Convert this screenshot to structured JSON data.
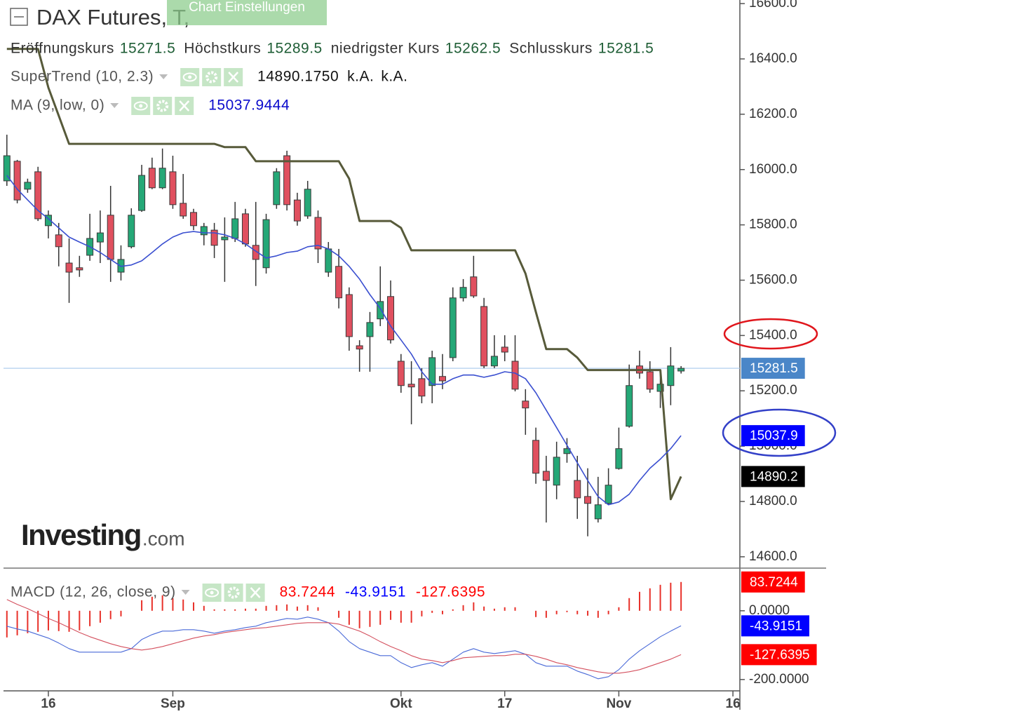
{
  "chart_data": [
    {
      "type": "candlestick",
      "title": "DAX Futures, T,",
      "categories": [
        null,
        null,
        null,
        null,
        "16",
        null,
        null,
        null,
        null,
        null,
        null,
        null,
        null,
        null,
        null,
        null,
        "Sep",
        null,
        null,
        null,
        null,
        null,
        null,
        null,
        null,
        null,
        null,
        null,
        null,
        null,
        null,
        null,
        null,
        null,
        null,
        null,
        null,
        null,
        "Okt",
        null,
        null,
        null,
        null,
        null,
        null,
        null,
        null,
        null,
        "17",
        null,
        null,
        null,
        null,
        null,
        null,
        null,
        null,
        null,
        null,
        "Nov",
        null,
        null,
        null,
        null,
        null,
        null,
        null,
        null,
        null,
        null,
        "16"
      ],
      "ohlc_labels": [
        "Eröffnungskurs",
        "Höchstkurs",
        "niedrigster Kurs",
        "Schlusskurs"
      ],
      "open": [
        15959,
        16030,
        15929,
        15992,
        15797,
        15764,
        15662,
        15645,
        15690,
        15738,
        15835,
        15629,
        15721,
        15852,
        16005,
        15934,
        15992,
        15878,
        15845,
        15764,
        15781,
        15746,
        15751,
        15840,
        15726,
        15645,
        15873,
        16050,
        15890,
        15832,
        15827,
        15629,
        15650,
        15548,
        15363,
        15396,
        15460,
        15541,
        15307,
        15224,
        15244,
        15219,
        15252,
        15320,
        15536,
        15612,
        15505,
        15290,
        15358,
        15307,
        15163,
        15021,
        14909,
        14859,
        14973,
        14876,
        14818,
        14737,
        14793,
        14919,
        15072,
        15290,
        15269,
        15198,
        15219,
        15271.5,
        null,
        null,
        null,
        null,
        null
      ],
      "high": [
        16126,
        16035,
        15967,
        16010,
        15852,
        15807,
        15751,
        15688,
        15840,
        15852,
        15941,
        15726,
        15860,
        16017,
        16043,
        16076,
        16050,
        15984,
        15858,
        15807,
        15807,
        15827,
        15883,
        15858,
        15883,
        15840,
        16005,
        16068,
        15916,
        15959,
        15852,
        15738,
        15713,
        15574,
        15383,
        15485,
        15650,
        15599,
        15333,
        15307,
        15282,
        15345,
        15333,
        15574,
        15604,
        15688,
        15536,
        15401,
        15401,
        15401,
        15206,
        15067,
        14965,
        15016,
        15029,
        14965,
        14920,
        14889,
        14920,
        15067,
        15295,
        15345,
        15307,
        15269,
        15358,
        15289.5,
        null,
        null,
        null,
        null,
        null
      ],
      "low": [
        15941,
        15878,
        15916,
        15814,
        15751,
        15650,
        15518,
        15612,
        15670,
        15662,
        15594,
        15599,
        15715,
        15847,
        15929,
        15929,
        15858,
        15822,
        15781,
        15726,
        15680,
        15594,
        15738,
        15721,
        15579,
        15624,
        15858,
        15852,
        15797,
        15822,
        15662,
        15612,
        15498,
        15345,
        15269,
        15269,
        15434,
        15371,
        15193,
        15079,
        15155,
        15155,
        15206,
        15307,
        15523,
        15536,
        15282,
        15282,
        15307,
        15198,
        15041,
        14864,
        14724,
        14808,
        14940,
        14737,
        14674,
        14724,
        14788,
        14915,
        15067,
        15244,
        15193,
        15138,
        15148,
        15262.5,
        null,
        null,
        null,
        null,
        null
      ],
      "close": [
        16050,
        15890,
        15954,
        15822,
        15835,
        15721,
        15629,
        15637,
        15751,
        15771,
        15675,
        15675,
        15835,
        15979,
        15934,
        16005,
        15873,
        15832,
        15797,
        15794,
        15726,
        15756,
        15822,
        15731,
        15675,
        15819,
        15992,
        15873,
        15814,
        15929,
        15713,
        15713,
        15536,
        15396,
        15351,
        15447,
        15523,
        15384,
        15219,
        15214,
        15181,
        15320,
        15236,
        15536,
        15574,
        15543,
        15290,
        15325,
        15340,
        15206,
        15138,
        14902,
        14876,
        14960,
        14991,
        14813,
        14793,
        14788,
        14859,
        14991,
        15219,
        15264,
        15206,
        15224,
        15290,
        15281.5,
        null,
        null,
        null,
        null,
        null
      ],
      "up_color": "#25a877",
      "down_color": "#e0505f",
      "last_price_color": "#4a86c8",
      "series": [
        {
          "name": "SuperTrend (10, 2.3)",
          "color": "#575a3a",
          "last_value_label": "14890.1750",
          "readout_notes": [
            "k.A.",
            "k.A."
          ],
          "axis_label": "14890.2",
          "label_color": "#000000",
          "values": [
            16436,
            16436,
            16436,
            16436,
            16296,
            16195,
            16093,
            16093,
            16093,
            16093,
            16093,
            16093,
            16093,
            16093,
            16093,
            16093,
            16093,
            16093,
            16093,
            16093,
            16093,
            16081,
            16081,
            16081,
            16030,
            16030,
            16030,
            16030,
            16030,
            16030,
            16030,
            16030,
            16030,
            15967,
            15814,
            15814,
            15814,
            15814,
            15789,
            15708,
            15708,
            15708,
            15708,
            15708,
            15708,
            15708,
            15708,
            15708,
            15708,
            15708,
            15624,
            15485,
            15351,
            15351,
            15351,
            15320,
            15275,
            15275,
            15275,
            15275,
            15275,
            15275,
            15275,
            15275,
            14808,
            14890.175,
            null,
            null,
            null,
            null,
            null
          ]
        },
        {
          "name": "MA (9, low, 0)",
          "color": "#3a4fd0",
          "axis_label": "15037.9",
          "label_color": "#0000ff",
          "values": [
            15979,
            15929,
            15890,
            15852,
            15822,
            15789,
            15756,
            15738,
            15721,
            15700,
            15675,
            15650,
            15655,
            15670,
            15700,
            15731,
            15756,
            15771,
            15776,
            15771,
            15771,
            15764,
            15751,
            15731,
            15705,
            15680,
            15688,
            15700,
            15705,
            15721,
            15726,
            15713,
            15688,
            15650,
            15604,
            15548,
            15498,
            15434,
            15384,
            15333,
            15269,
            15224,
            15224,
            15244,
            15257,
            15257,
            15249,
            15257,
            15269,
            15264,
            15244,
            15193,
            15130,
            15067,
            15003,
            14940,
            14876,
            14818,
            14788,
            14798,
            14826,
            14876,
            14920,
            14953,
            14991,
            15037.9444,
            null,
            null,
            null,
            null,
            null
          ]
        }
      ],
      "ylim": [
        14559,
        16613
      ],
      "yticks": [
        {
          "value": 14600,
          "label": "14600.0"
        },
        {
          "value": 14800,
          "label": "14800.0"
        },
        {
          "value": 15000,
          "label": "15000.0"
        },
        {
          "value": 15200,
          "label": "15200.0"
        },
        {
          "value": 15400,
          "label": "15400.0"
        },
        {
          "value": 15600,
          "label": "15600.0"
        },
        {
          "value": 15800,
          "label": "15800.0"
        },
        {
          "value": 16000,
          "label": "16000.0"
        },
        {
          "value": 16200,
          "label": "16200.0"
        },
        {
          "value": 16400,
          "label": "16400.0"
        },
        {
          "value": 16600,
          "label": "16600.0"
        }
      ]
    },
    {
      "type": "macd",
      "title": "MACD (12, 26, close, 9)",
      "series": [
        {
          "style": "bar",
          "color": "#e8312a",
          "label_color": "#ff0000",
          "values": [
            -77.6,
            -71.5,
            -65.3,
            -61.2,
            -57.2,
            -59.2,
            -61.2,
            -57.1,
            -44.9,
            -34.7,
            -24.5,
            -16.3,
            0,
            30.6,
            40.8,
            44.9,
            36.7,
            32.7,
            24.5,
            14.3,
            4.1,
            4.1,
            4.1,
            6.1,
            6.1,
            14.3,
            16.3,
            18.4,
            12.2,
            16.3,
            10.2,
            0,
            -20.4,
            -40.8,
            -51,
            -46.9,
            -40.8,
            -26.5,
            -34.7,
            -34.7,
            -16.3,
            -6.1,
            -10.2,
            4.1,
            16.3,
            24.5,
            12.3,
            6.1,
            10.2,
            10.2,
            0,
            -18.3,
            -20.4,
            -10.2,
            -4.1,
            -10.2,
            -14.3,
            -20.4,
            -10.2,
            10.2,
            36.8,
            55.1,
            65.3,
            75.5,
            81.6,
            83.7244,
            null,
            null,
            null,
            null,
            null
          ]
        },
        {
          "style": "line",
          "color": "#4a6ad8",
          "label_color": "#0000ff",
          "values": [
            -44.9,
            -53.1,
            -59.2,
            -69.4,
            -79.6,
            -93.9,
            -110.2,
            -120.4,
            -120.4,
            -120.4,
            -120.4,
            -120.4,
            -110.2,
            -83.7,
            -69.4,
            -59.2,
            -59.2,
            -55.1,
            -55.1,
            -59.2,
            -65.3,
            -59.2,
            -55.1,
            -49,
            -44.9,
            -34.7,
            -28.6,
            -22.4,
            -24.5,
            -18.4,
            -24.5,
            -34.7,
            -59.2,
            -89.8,
            -110.2,
            -120.4,
            -130.6,
            -130.6,
            -151,
            -165.3,
            -157.1,
            -151,
            -161.2,
            -140.8,
            -120.4,
            -110.2,
            -120.4,
            -124.5,
            -120.4,
            -116.3,
            -126.5,
            -151,
            -161.2,
            -161.2,
            -161.2,
            -175.5,
            -185.7,
            -198,
            -191.8,
            -171.4,
            -140.8,
            -116.3,
            -95.9,
            -75.5,
            -59.2,
            -43.9151,
            null,
            null,
            null,
            null,
            null
          ]
        },
        {
          "style": "line",
          "color": "#d4505e",
          "label_color": "#ff0000",
          "values": [
            32.7,
            18.4,
            6.1,
            -8.2,
            -22.4,
            -34.7,
            -49,
            -63.3,
            -75.5,
            -85.7,
            -95.9,
            -104.1,
            -110.2,
            -114.3,
            -110.2,
            -104.1,
            -95.9,
            -87.8,
            -79.6,
            -73.5,
            -69.4,
            -63.3,
            -59.2,
            -55.1,
            -51,
            -49,
            -44.9,
            -40.8,
            -36.7,
            -34.7,
            -34.7,
            -34.7,
            -38.8,
            -49,
            -59.2,
            -73.5,
            -89.8,
            -104.1,
            -116.3,
            -130.6,
            -140.8,
            -144.9,
            -151,
            -144.9,
            -136.7,
            -134.7,
            -132.7,
            -130.6,
            -130.6,
            -126.5,
            -126.5,
            -132.7,
            -140.8,
            -151,
            -157.1,
            -165.3,
            -171.4,
            -177.6,
            -181.6,
            -181.6,
            -177.6,
            -171.4,
            -161.2,
            -151,
            -140.8,
            -127.6395,
            null,
            null,
            null,
            null,
            null
          ]
        }
      ],
      "ylim": [
        -233,
        120
      ],
      "yticks": [
        {
          "value": 0,
          "label": "0.0000"
        },
        {
          "value": -200,
          "label": "-200.0000"
        }
      ]
    }
  ],
  "ui": {
    "settings_tab": "Chart Einstellungen",
    "watermark": [
      "Investing",
      ".com"
    ]
  }
}
